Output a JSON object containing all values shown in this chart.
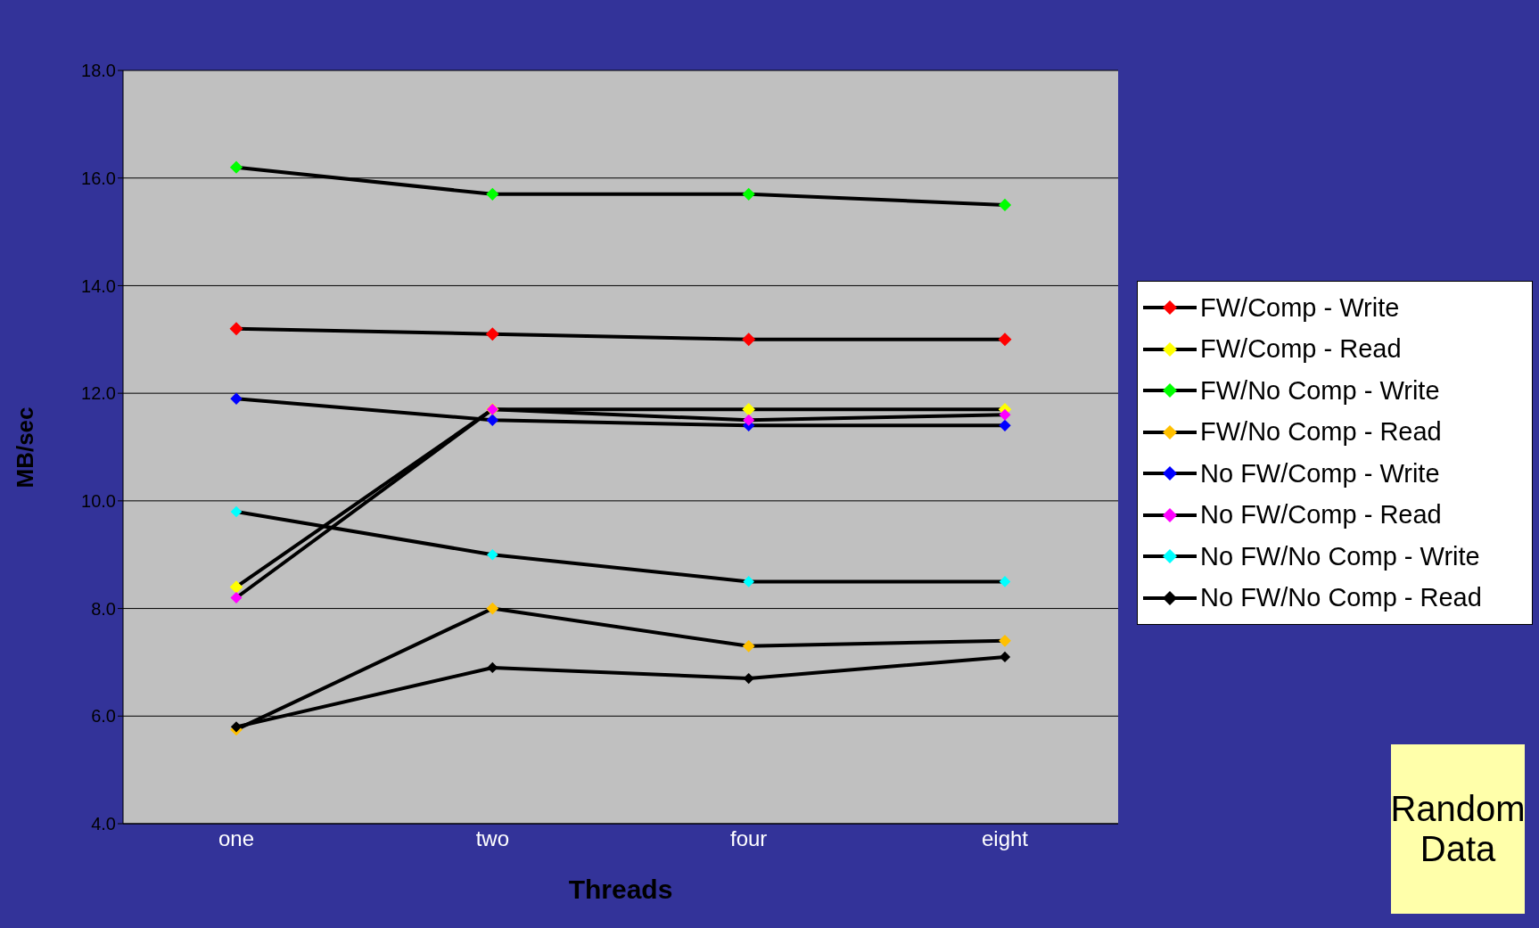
{
  "chart_data": {
    "type": "line",
    "xlabel": "Threads",
    "ylabel": "MB/sec",
    "categories": [
      "one",
      "two",
      "four",
      "eight"
    ],
    "series": [
      {
        "name": "FW/Comp - Write",
        "color": "#ff0000",
        "values": [
          13.2,
          13.1,
          13.0,
          13.0
        ]
      },
      {
        "name": "FW/Comp - Read",
        "color": "#ffff00",
        "values": [
          8.4,
          11.7,
          11.7,
          11.7
        ]
      },
      {
        "name": "FW/No Comp - Write",
        "color": "#00ff00",
        "values": [
          16.2,
          15.7,
          15.7,
          15.5
        ]
      },
      {
        "name": "FW/No Comp - Read",
        "color": "#ffc000",
        "values": [
          5.75,
          8.0,
          7.3,
          7.4
        ]
      },
      {
        "name": "No FW/Comp - Write",
        "color": "#0000ff",
        "values": [
          11.9,
          11.5,
          11.4,
          11.4
        ]
      },
      {
        "name": "No FW/Comp - Read",
        "color": "#ff00ff",
        "values": [
          8.2,
          11.7,
          11.5,
          11.6
        ]
      },
      {
        "name": "No FW/No Comp - Write",
        "color": "#00ffff",
        "values": [
          9.8,
          9.0,
          8.5,
          8.5
        ]
      },
      {
        "name": "No FW/No Comp - Read",
        "color": "#000000",
        "values": [
          5.8,
          6.9,
          6.7,
          7.1
        ]
      }
    ],
    "ylim": [
      4,
      18
    ],
    "yticks": [
      {
        "value": 4,
        "label": "4.0"
      },
      {
        "value": 6,
        "label": "6.0"
      },
      {
        "value": 8,
        "label": "8.0"
      },
      {
        "value": 10,
        "label": "10.0"
      },
      {
        "value": 12,
        "label": "12.0"
      },
      {
        "value": 14,
        "label": "14.0"
      },
      {
        "value": 16,
        "label": "16.0"
      },
      {
        "value": 18,
        "label": "18.0"
      }
    ],
    "grid": "y",
    "legend": "right",
    "marker": "diamond",
    "line_style": "solid",
    "annotations": [
      "Random Data"
    ]
  }
}
